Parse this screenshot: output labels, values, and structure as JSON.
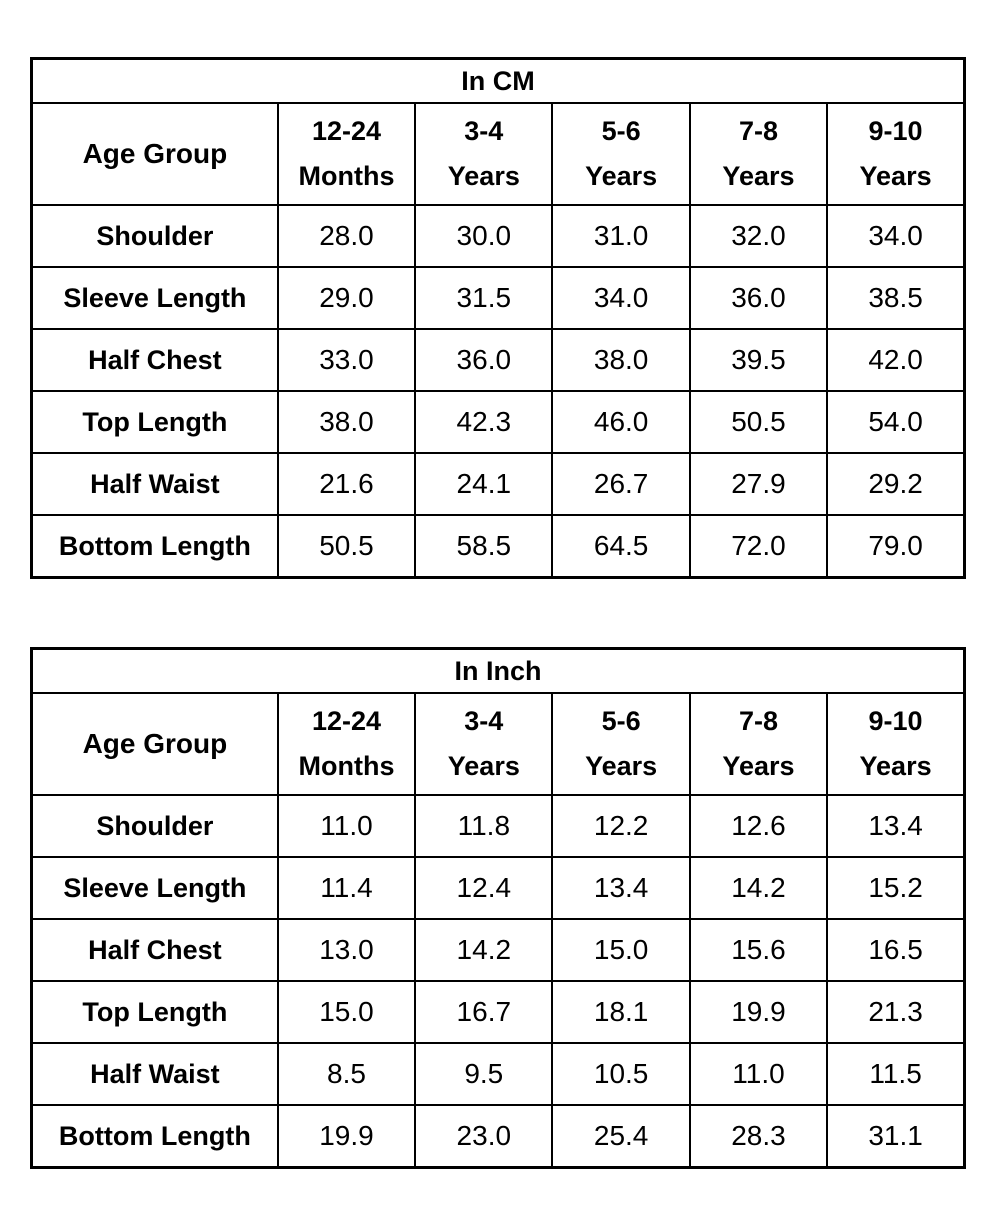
{
  "colors": {
    "background": "#ffffff",
    "border": "#000000",
    "text": "#000000"
  },
  "chart_data": [
    {
      "type": "table",
      "title": "In CM",
      "corner_header": "Age Group",
      "columns": [
        "12-24\nMonths",
        "3-4\nYears",
        "5-6\nYears",
        "7-8\nYears",
        "9-10\nYears"
      ],
      "rows": [
        {
          "label": "Shoulder",
          "values": [
            "28.0",
            "30.0",
            "31.0",
            "32.0",
            "34.0"
          ]
        },
        {
          "label": "Sleeve Length",
          "values": [
            "29.0",
            "31.5",
            "34.0",
            "36.0",
            "38.5"
          ]
        },
        {
          "label": "Half Chest",
          "values": [
            "33.0",
            "36.0",
            "38.0",
            "39.5",
            "42.0"
          ]
        },
        {
          "label": "Top Length",
          "values": [
            "38.0",
            "42.3",
            "46.0",
            "50.5",
            "54.0"
          ]
        },
        {
          "label": "Half Waist",
          "values": [
            "21.6",
            "24.1",
            "26.7",
            "27.9",
            "29.2"
          ]
        },
        {
          "label": "Bottom Length",
          "values": [
            "50.5",
            "58.5",
            "64.5",
            "72.0",
            "79.0"
          ]
        }
      ]
    },
    {
      "type": "table",
      "title": "In Inch",
      "corner_header": "Age Group",
      "columns": [
        "12-24\nMonths",
        "3-4\nYears",
        "5-6\nYears",
        "7-8\nYears",
        "9-10\nYears"
      ],
      "rows": [
        {
          "label": "Shoulder",
          "values": [
            "11.0",
            "11.8",
            "12.2",
            "12.6",
            "13.4"
          ]
        },
        {
          "label": "Sleeve Length",
          "values": [
            "11.4",
            "12.4",
            "13.4",
            "14.2",
            "15.2"
          ]
        },
        {
          "label": "Half Chest",
          "values": [
            "13.0",
            "14.2",
            "15.0",
            "15.6",
            "16.5"
          ]
        },
        {
          "label": "Top Length",
          "values": [
            "15.0",
            "16.7",
            "18.1",
            "19.9",
            "21.3"
          ]
        },
        {
          "label": "Half Waist",
          "values": [
            "8.5",
            "9.5",
            "10.5",
            "11.0",
            "11.5"
          ]
        },
        {
          "label": "Bottom Length",
          "values": [
            "19.9",
            "23.0",
            "25.4",
            "28.3",
            "31.1"
          ]
        }
      ]
    }
  ]
}
